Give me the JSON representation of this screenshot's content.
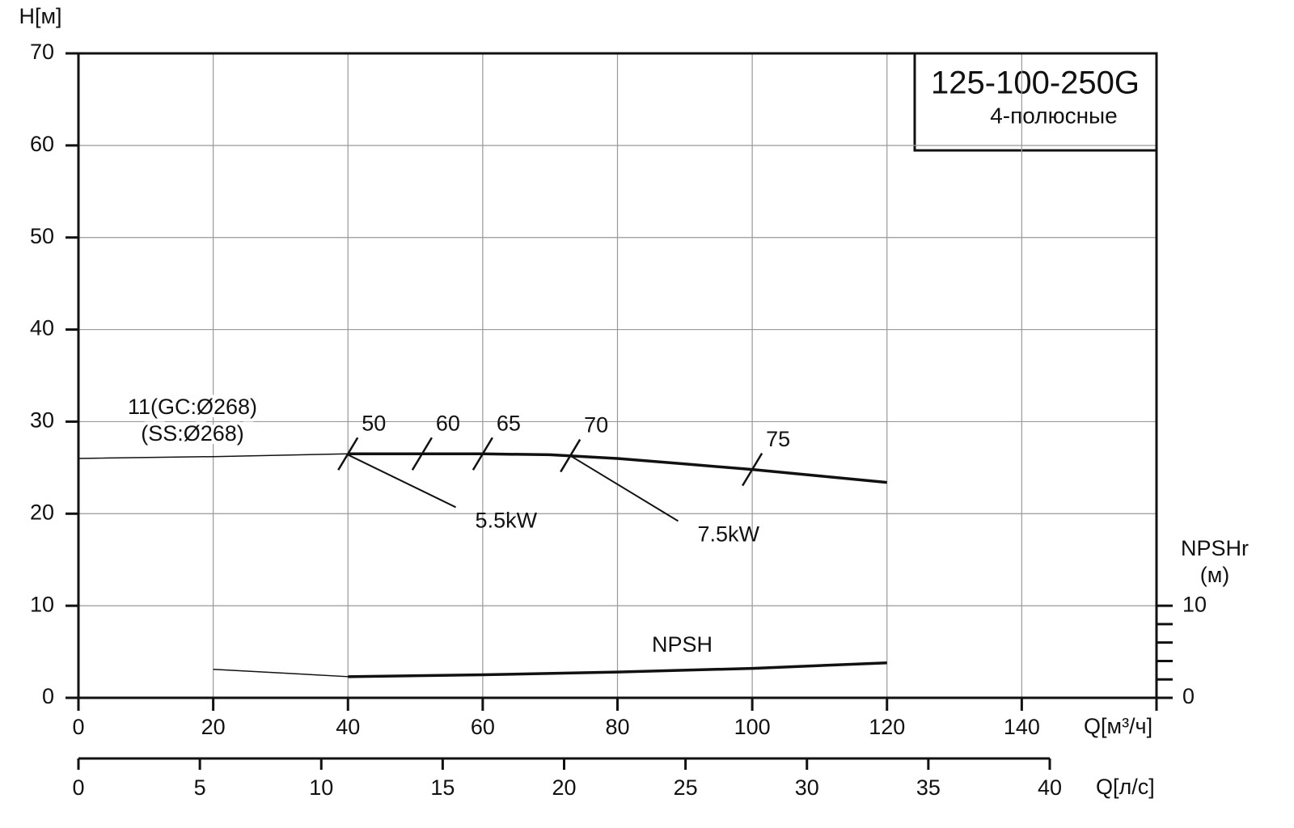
{
  "chart_data": {
    "type": "line",
    "title": "125-100-250G",
    "subtitle": "4-полюсные",
    "ylabel": "H[м]",
    "xlabel": "Q[м³/ч]",
    "x2label": "Q[л/с]",
    "y2label": "NPSHr",
    "y2unit": "(м)",
    "xlim": [
      0,
      160
    ],
    "xticks": [
      0,
      20,
      40,
      60,
      80,
      100,
      120,
      140
    ],
    "ylim": [
      0,
      70
    ],
    "yticks": [
      0,
      10,
      20,
      30,
      40,
      50,
      60,
      70
    ],
    "x2lim": [
      0,
      40
    ],
    "x2ticks": [
      0,
      5,
      10,
      15,
      20,
      25,
      30,
      35,
      40
    ],
    "y2lim": [
      0,
      70
    ],
    "y2ticks": [
      0,
      10
    ],
    "y2minorticks": [
      2,
      4,
      6,
      8
    ],
    "grid": true,
    "curve_label": [
      "11(GC:Ø268)",
      "(SS:Ø268)"
    ],
    "series": [
      {
        "color": "#111111",
        "width": 1.5,
        "x": [
          0,
          20,
          40
        ],
        "values": [
          26,
          26.2,
          26.5
        ]
      },
      {
        "color": "#111111",
        "width": 3.5,
        "x": [
          40,
          50,
          60,
          70,
          80,
          90,
          100,
          110,
          120
        ],
        "values": [
          26.5,
          26.5,
          26.5,
          26.4,
          26.0,
          25.4,
          24.8,
          24.1,
          23.4
        ]
      },
      {
        "color": "#111111",
        "width": 1.5,
        "axis": "y2",
        "x": [
          20,
          40
        ],
        "values": [
          3.1,
          2.3
        ]
      },
      {
        "name": "NPSH",
        "color": "#111111",
        "width": 3.5,
        "axis": "y2",
        "x": [
          40,
          60,
          80,
          100,
          120
        ],
        "values": [
          2.3,
          2.5,
          2.8,
          3.2,
          3.8
        ]
      }
    ],
    "efficiency_marks": [
      {
        "label": "50",
        "x": 40,
        "y": 26.5
      },
      {
        "label": "60",
        "x": 51,
        "y": 26.5
      },
      {
        "label": "65",
        "x": 60,
        "y": 26.5
      },
      {
        "label": "70",
        "x": 73,
        "y": 26.3
      },
      {
        "label": "75",
        "x": 100,
        "y": 24.8
      }
    ],
    "power_marks": [
      {
        "label": "5.5kW",
        "x": [
          40,
          56
        ],
        "y": [
          26.4,
          20.7
        ]
      },
      {
        "label": "7.5kW",
        "x": [
          73,
          89
        ],
        "y": [
          26.3,
          19.2
        ]
      }
    ]
  }
}
